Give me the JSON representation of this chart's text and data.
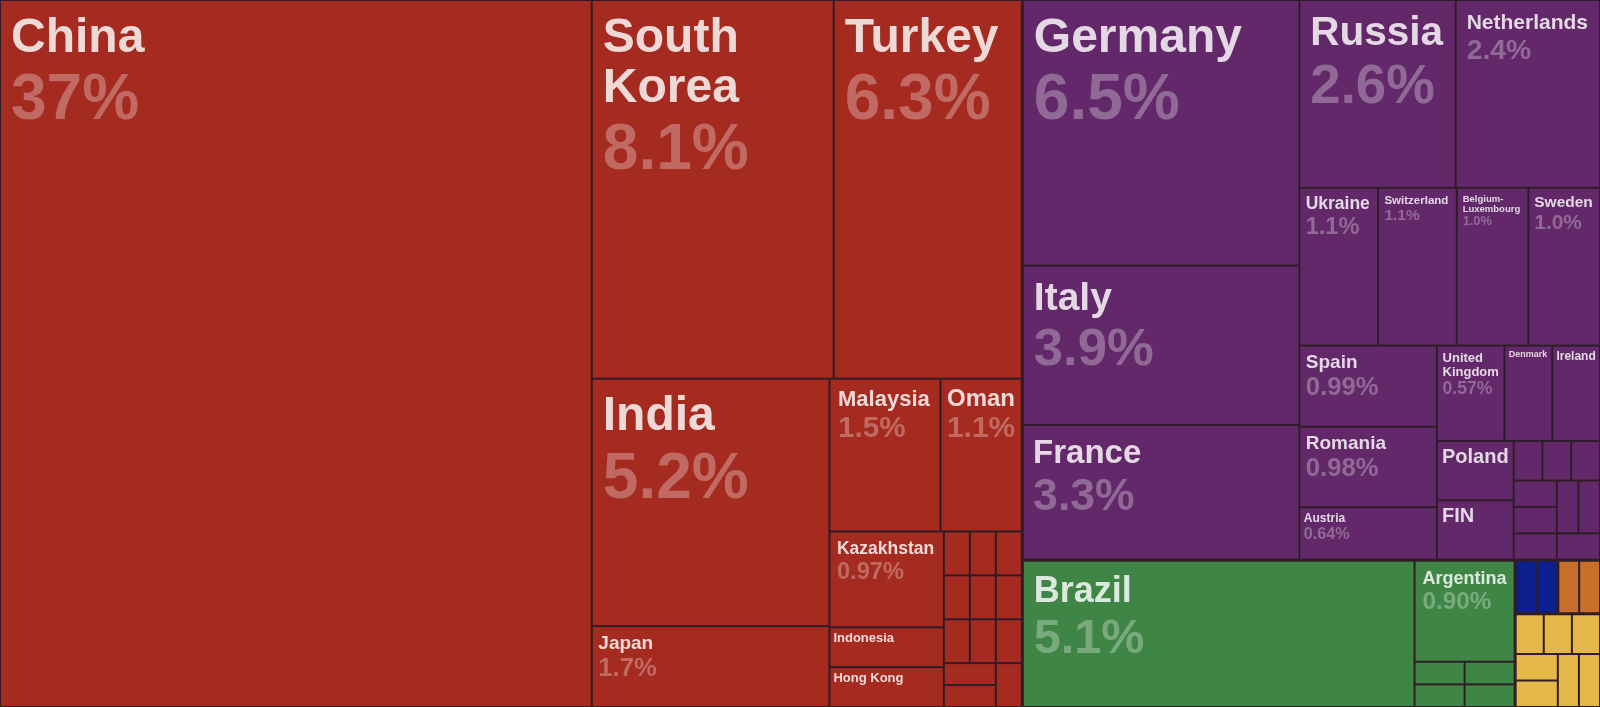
{
  "chart_data": {
    "type": "other",
    "categories": [
      "China",
      "South Korea",
      "Turkey",
      "India",
      "Japan",
      "Malaysia",
      "Oman",
      "Kazakhstan",
      "Indonesia",
      "Hong Kong",
      null,
      null,
      null,
      null,
      null,
      null,
      null,
      null,
      null,
      null,
      null,
      null,
      "Germany",
      "Italy",
      "France",
      "Russia",
      "Netherlands",
      "Ukraine",
      "Switzerland",
      "Belgium-Luxembourg",
      "Sweden",
      "Spain",
      "Romania",
      "Austria",
      "United Kingdom",
      "Denmark",
      "Ireland",
      "Poland",
      "FIN",
      null,
      null,
      null,
      null,
      null,
      null,
      null,
      null,
      null,
      "Brazil",
      "Argentina",
      null,
      null,
      null,
      null,
      null,
      null,
      null,
      null,
      null,
      null,
      null,
      null,
      null,
      null,
      null
    ],
    "values": [
      37,
      8.1,
      6.3,
      5.2,
      1.7,
      1.5,
      1.1,
      0.97,
      null,
      null,
      null,
      null,
      null,
      null,
      null,
      null,
      null,
      null,
      null,
      null,
      null,
      null,
      6.5,
      3.9,
      3.3,
      2.6,
      2.4,
      1.1,
      1.1,
      1.0,
      1.0,
      0.99,
      0.98,
      0.64,
      0.57,
      null,
      null,
      null,
      null,
      null,
      null,
      null,
      null,
      null,
      null,
      null,
      null,
      null,
      5.1,
      0.9,
      null,
      null,
      null,
      null,
      null,
      null,
      null,
      null,
      null,
      null,
      null,
      null,
      null,
      null,
      null
    ],
    "colors": [
      "#a52a20",
      "#a52a20",
      "#a52a20",
      "#a52a20",
      "#a52a20",
      "#a52a20",
      "#a52a20",
      "#a52a20",
      "#a52a20",
      "#a52a20",
      "#a52a20",
      "#a52a20",
      "#a52a20",
      "#a52a20",
      "#a52a20",
      "#a52a20",
      "#a52a20",
      "#a52a20",
      "#a52a20",
      "#a52a20",
      "#a52a20",
      "#a52a20",
      "#622869",
      "#622869",
      "#622869",
      "#622869",
      "#622869",
      "#622869",
      "#622869",
      "#622869",
      "#622869",
      "#622869",
      "#622869",
      "#622869",
      "#622869",
      "#622869",
      "#622869",
      "#622869",
      "#622869",
      "#622869",
      "#622869",
      "#622869",
      "#622869",
      "#622869",
      "#622869",
      "#622869",
      "#622869",
      "#622869",
      "#3f8646",
      "#3f8646",
      "#3f8646",
      "#3f8646",
      "#3f8646",
      "#3f8646",
      "#0d1f8f",
      "#0d1f8f",
      "#c96e2b",
      "#c96e2b",
      "#e4b848",
      "#e4b848",
      "#e4b848",
      "#e4b848",
      "#e4b848",
      "#e4b848",
      "#e4b848"
    ],
    "value_labels": [
      "37%",
      "8.1%",
      "6.3%",
      "5.2%",
      "1.7%",
      "1.5%",
      "1.1%",
      "0.97%",
      null,
      null,
      null,
      null,
      null,
      null,
      null,
      null,
      null,
      null,
      null,
      null,
      null,
      null,
      "6.5%",
      "3.9%",
      "3.3%",
      "2.6%",
      "2.4%",
      "1.1%",
      "1.1%",
      "1.0%",
      "1.0%",
      "0.99%",
      "0.98%",
      "0.64%",
      "0.57%",
      null,
      null,
      null,
      null,
      null,
      null,
      null,
      null,
      null,
      null,
      null,
      null,
      null,
      "5.1%",
      "0.90%",
      null,
      null,
      null,
      null,
      null,
      null,
      null,
      null,
      null,
      null,
      null,
      null,
      null,
      null,
      null
    ]
  }
}
